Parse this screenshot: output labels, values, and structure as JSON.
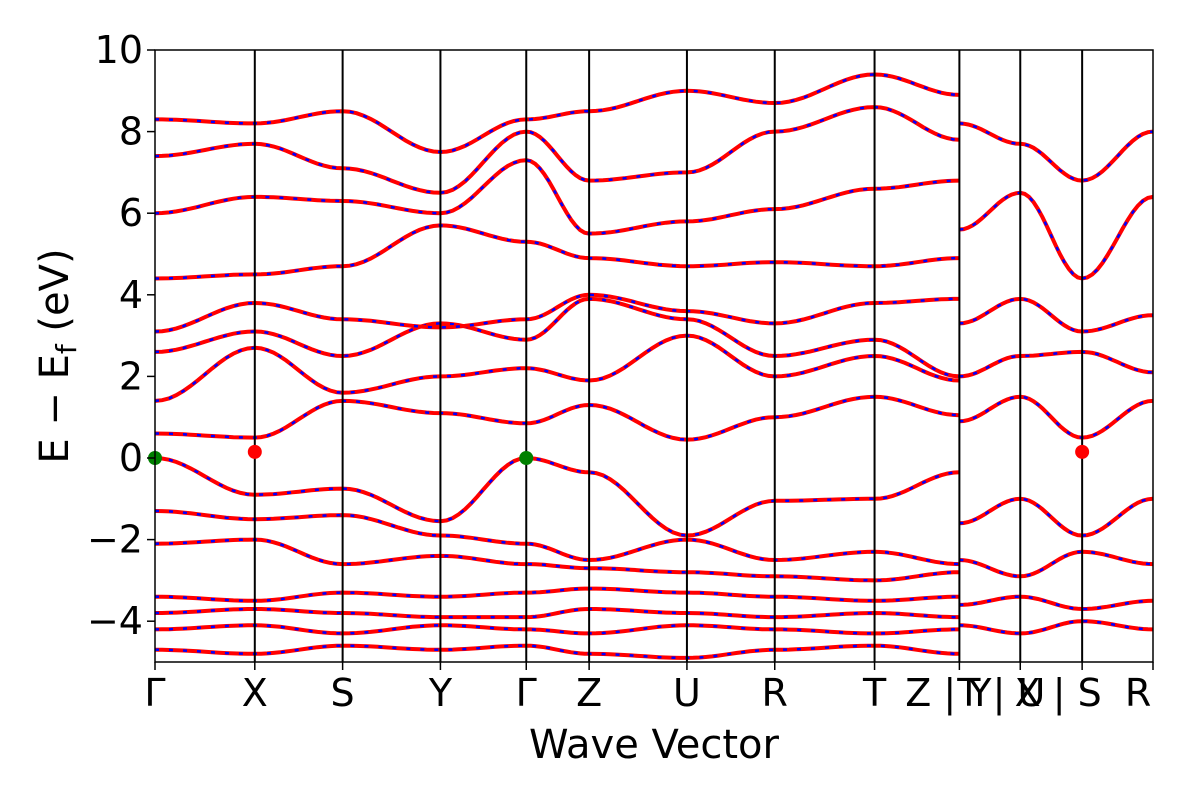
{
  "chart_data": {
    "type": "line",
    "xlabel": "Wave Vector",
    "ylabel_main": "E − E",
    "ylabel_sub": "f",
    "ylabel_unit": " (eV)",
    "ylim": [
      -5,
      10
    ],
    "yticks": [
      {
        "value": -4,
        "label": "−4"
      },
      {
        "value": -2,
        "label": "−2"
      },
      {
        "value": 0,
        "label": "0"
      },
      {
        "value": 2,
        "label": "2"
      },
      {
        "value": 4,
        "label": "4"
      },
      {
        "value": 6,
        "label": "6"
      },
      {
        "value": 8,
        "label": "8"
      },
      {
        "value": 10,
        "label": "10"
      }
    ],
    "kpoint_positions": [
      0,
      1,
      1.88,
      2.86,
      3.72,
      4.35,
      5.33,
      6.21,
      7.21,
      8.06,
      8.67,
      9.29,
      10.0
    ],
    "kpoint_labels": [
      {
        "pos": 0,
        "label": "Γ"
      },
      {
        "pos": 1,
        "label": "X"
      },
      {
        "pos": 1.88,
        "label": "S"
      },
      {
        "pos": 2.86,
        "label": "Y"
      },
      {
        "pos": 3.72,
        "label": "Γ"
      },
      {
        "pos": 4.35,
        "label": "Z"
      },
      {
        "pos": 5.33,
        "label": "U"
      },
      {
        "pos": 6.21,
        "label": "R"
      },
      {
        "pos": 7.21,
        "label": "T"
      },
      {
        "pos": 7.95,
        "label": "Z | Y"
      },
      {
        "pos": 8.48,
        "label": "T | U"
      },
      {
        "pos": 9.05,
        "label": "X | S"
      },
      {
        "pos": 9.85,
        "label": "R"
      }
    ],
    "series_colors": {
      "band": "#ff0000",
      "overlay": "#0000ff"
    },
    "markers": [
      {
        "x": 0,
        "y": 0,
        "color": "#008000"
      },
      {
        "x": 3.72,
        "y": 0,
        "color": "#008000"
      },
      {
        "x": 1,
        "y": 0.15,
        "color": "#ff0000"
      },
      {
        "x": 9.29,
        "y": 0.15,
        "color": "#ff0000"
      }
    ],
    "bands": [
      {
        "x": [
          0,
          1,
          1.88,
          2.86,
          3.72,
          4.35,
          5.33,
          6.21,
          7.21,
          8.06
        ],
        "y": [
          0,
          -0.9,
          -0.75,
          -1.55,
          0,
          -0.35,
          -1.9,
          -1.05,
          -1.0,
          -0.35
        ]
      },
      {
        "x": [
          0,
          1,
          1.88,
          2.86,
          3.72,
          4.35,
          5.33,
          6.21,
          7.21,
          8.06
        ],
        "y": [
          0.6,
          0.5,
          1.4,
          1.1,
          0.85,
          1.3,
          0.45,
          1.0,
          1.5,
          1.05
        ]
      },
      {
        "x": [
          0,
          1,
          1.88,
          2.86,
          3.72,
          4.35,
          5.33,
          6.21,
          7.21,
          8.06
        ],
        "y": [
          1.4,
          2.7,
          1.6,
          2.0,
          2.2,
          1.9,
          3.0,
          2.0,
          2.5,
          1.9
        ]
      },
      {
        "x": [
          0,
          1,
          1.88,
          2.86,
          3.72,
          4.35,
          5.33,
          6.21,
          7.21,
          8.06
        ],
        "y": [
          2.6,
          3.1,
          2.5,
          3.3,
          2.9,
          3.9,
          3.4,
          2.5,
          2.9,
          2.0
        ]
      },
      {
        "x": [
          0,
          1,
          1.88,
          2.86,
          3.72,
          4.35,
          5.33,
          6.21,
          7.21,
          8.06
        ],
        "y": [
          3.1,
          3.8,
          3.4,
          3.2,
          3.4,
          4.0,
          3.6,
          3.3,
          3.8,
          3.9
        ]
      },
      {
        "x": [
          0,
          1,
          1.88,
          2.86,
          3.72,
          4.35,
          5.33,
          6.21,
          7.21,
          8.06
        ],
        "y": [
          4.4,
          4.5,
          4.7,
          5.7,
          5.3,
          4.9,
          4.7,
          4.8,
          4.7,
          4.9
        ]
      },
      {
        "x": [
          0,
          1,
          1.88,
          2.86,
          3.72,
          4.35,
          5.33,
          6.21,
          7.21,
          8.06
        ],
        "y": [
          6.0,
          6.4,
          6.3,
          6.0,
          7.3,
          5.5,
          5.8,
          6.1,
          6.6,
          6.8
        ]
      },
      {
        "x": [
          0,
          1,
          1.88,
          2.86,
          3.72,
          4.35,
          5.33,
          6.21,
          7.21,
          8.06
        ],
        "y": [
          7.4,
          7.7,
          7.1,
          6.5,
          8.0,
          6.8,
          7.0,
          8.0,
          8.6,
          7.8
        ]
      },
      {
        "x": [
          0,
          1,
          1.88,
          2.86,
          3.72,
          4.35,
          5.33,
          6.21,
          7.21,
          8.06
        ],
        "y": [
          8.3,
          8.2,
          8.5,
          7.5,
          8.3,
          8.5,
          9.0,
          8.7,
          9.4,
          8.9
        ]
      },
      {
        "x": [
          0,
          1,
          1.88,
          2.86,
          3.72,
          4.35,
          5.33,
          6.21,
          7.21,
          8.06
        ],
        "y": [
          -1.3,
          -1.5,
          -1.4,
          -1.9,
          -2.1,
          -2.5,
          -2.0,
          -2.5,
          -2.3,
          -2.6
        ]
      },
      {
        "x": [
          0,
          1,
          1.88,
          2.86,
          3.72,
          4.35,
          5.33,
          6.21,
          7.21,
          8.06
        ],
        "y": [
          -2.1,
          -2.0,
          -2.6,
          -2.4,
          -2.6,
          -2.7,
          -2.8,
          -2.9,
          -3.0,
          -2.8
        ]
      },
      {
        "x": [
          0,
          1,
          1.88,
          2.86,
          3.72,
          4.35,
          5.33,
          6.21,
          7.21,
          8.06
        ],
        "y": [
          -3.4,
          -3.5,
          -3.3,
          -3.4,
          -3.3,
          -3.2,
          -3.3,
          -3.4,
          -3.5,
          -3.4
        ]
      },
      {
        "x": [
          0,
          1,
          1.88,
          2.86,
          3.72,
          4.35,
          5.33,
          6.21,
          7.21,
          8.06
        ],
        "y": [
          -3.8,
          -3.7,
          -3.8,
          -3.9,
          -3.9,
          -3.7,
          -3.8,
          -3.9,
          -3.8,
          -3.9
        ]
      },
      {
        "x": [
          0,
          1,
          1.88,
          2.86,
          3.72,
          4.35,
          5.33,
          6.21,
          7.21,
          8.06
        ],
        "y": [
          -4.2,
          -4.1,
          -4.3,
          -4.1,
          -4.2,
          -4.3,
          -4.1,
          -4.2,
          -4.3,
          -4.2
        ]
      },
      {
        "x": [
          0,
          1,
          1.88,
          2.86,
          3.72,
          4.35,
          5.33,
          6.21,
          7.21,
          8.06
        ],
        "y": [
          -4.7,
          -4.8,
          -4.6,
          -4.7,
          -4.6,
          -4.8,
          -4.9,
          -4.7,
          -4.6,
          -4.8
        ]
      },
      {
        "x": [
          8.06,
          8.67,
          9.29,
          10.0
        ],
        "y": [
          -1.6,
          -1.0,
          -1.9,
          -1.0
        ]
      },
      {
        "x": [
          8.06,
          8.67,
          9.29,
          10.0
        ],
        "y": [
          0.9,
          1.5,
          0.5,
          1.4
        ]
      },
      {
        "x": [
          8.06,
          8.67,
          9.29,
          10.0
        ],
        "y": [
          2.0,
          2.5,
          2.6,
          2.1
        ]
      },
      {
        "x": [
          8.06,
          8.67,
          9.29,
          10.0
        ],
        "y": [
          3.3,
          3.9,
          3.1,
          3.5
        ]
      },
      {
        "x": [
          8.06,
          8.67,
          9.29,
          10.0
        ],
        "y": [
          5.6,
          6.5,
          4.4,
          6.4
        ]
      },
      {
        "x": [
          8.06,
          8.67,
          9.29,
          10.0
        ],
        "y": [
          8.2,
          7.7,
          6.8,
          8.0
        ]
      },
      {
        "x": [
          8.06,
          8.67,
          9.29,
          10.0
        ],
        "y": [
          -2.5,
          -2.9,
          -2.3,
          -2.6
        ]
      },
      {
        "x": [
          8.06,
          8.67,
          9.29,
          10.0
        ],
        "y": [
          -3.6,
          -3.4,
          -3.7,
          -3.5
        ]
      },
      {
        "x": [
          8.06,
          8.67,
          9.29,
          10.0
        ],
        "y": [
          -4.1,
          -4.3,
          -4.0,
          -4.2
        ]
      }
    ]
  }
}
